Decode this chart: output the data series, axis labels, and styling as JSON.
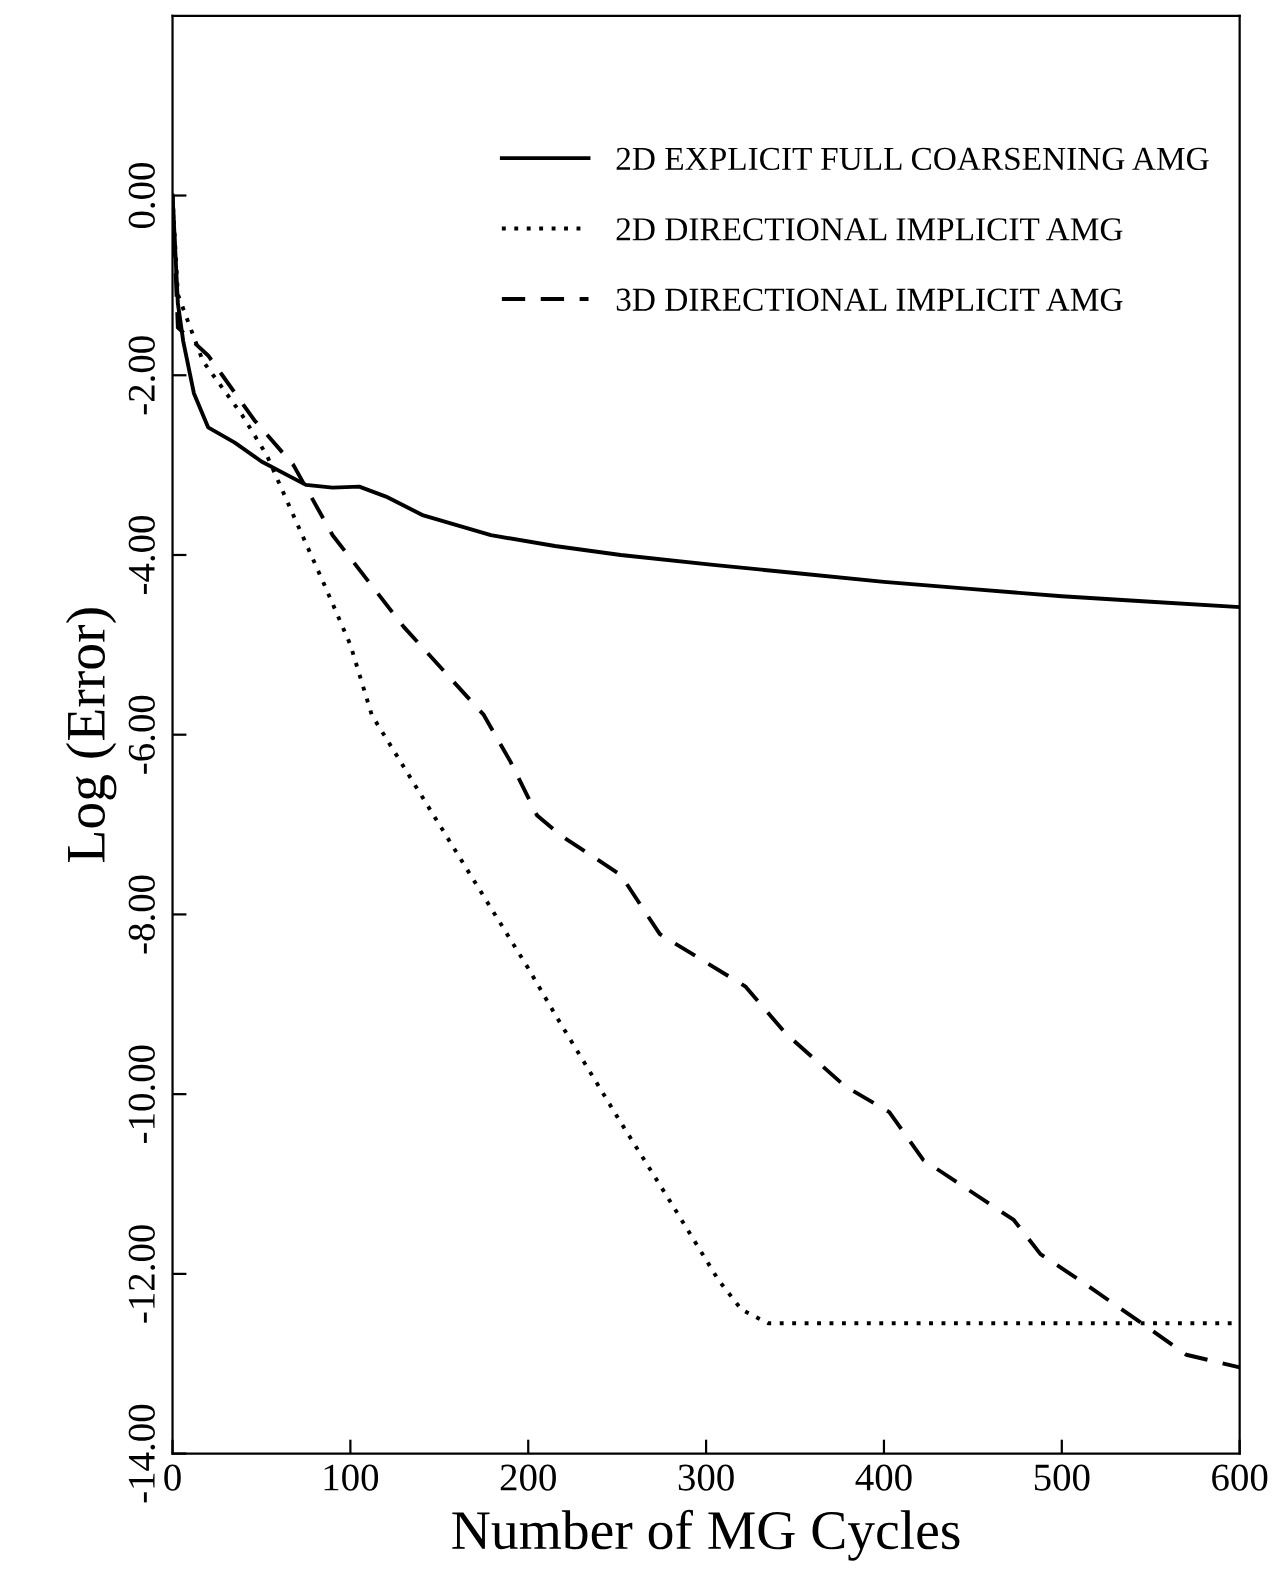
{
  "chart_data": {
    "type": "line",
    "xlabel": "Number of MG Cycles",
    "ylabel": "Log (Error)",
    "xlim": [
      0,
      600
    ],
    "ylim": [
      -14,
      2
    ],
    "xticks": [
      0,
      100,
      200,
      300,
      400,
      500,
      600
    ],
    "yticks": [
      {
        "value": 0,
        "label": "0.00"
      },
      {
        "value": -2,
        "label": "-2.00"
      },
      {
        "value": -4,
        "label": "-4.00"
      },
      {
        "value": -6,
        "label": "-6.00"
      },
      {
        "value": -8,
        "label": "-8.00"
      },
      {
        "value": -10,
        "label": "-10.00"
      },
      {
        "value": -12,
        "label": "-12.00"
      },
      {
        "value": -14,
        "label": "-14.00"
      }
    ],
    "grid": false,
    "legend": "top right",
    "marker": "none",
    "series": [
      {
        "name": "2D EXPLICIT FULL COARSENING AMG",
        "color": "#000000",
        "line_style": "solid",
        "x": [
          0,
          3,
          6,
          12,
          20,
          35,
          50,
          75,
          90,
          105,
          120,
          141,
          179,
          215,
          252,
          304,
          350,
          400,
          450,
          500,
          550,
          600
        ],
        "values": [
          0,
          -1.2,
          -1.62,
          -2.2,
          -2.58,
          -2.75,
          -2.96,
          -3.22,
          -3.25,
          -3.24,
          -3.35,
          -3.56,
          -3.78,
          -3.9,
          -4.0,
          -4.11,
          -4.2,
          -4.3,
          -4.38,
          -4.46,
          -4.52,
          -4.58
        ]
      },
      {
        "name": "2D DIRECTIONAL IMPLICIT AMG",
        "color": "#000000",
        "line_style": "dotted",
        "x": [
          0,
          3,
          17,
          39,
          53,
          68,
          86,
          100,
          112,
          150,
          200,
          215,
          250,
          280,
          307,
          320,
          335,
          400,
          500,
          600
        ],
        "values": [
          0,
          -1.1,
          -1.84,
          -2.44,
          -2.89,
          -3.56,
          -4.36,
          -5.0,
          -5.78,
          -7.0,
          -8.6,
          -9.11,
          -10.25,
          -11.2,
          -12.07,
          -12.4,
          -12.55,
          -12.55,
          -12.55,
          -12.55
        ]
      },
      {
        "name": "3D DIRECTIONAL IMPLICIT AMG",
        "color": "#000000",
        "line_style": "dashed",
        "x": [
          0,
          3,
          20,
          28,
          46,
          68,
          90,
          130,
          175,
          190,
          205,
          219,
          252,
          274,
          322,
          345,
          378,
          403,
          422,
          473,
          488,
          510,
          545,
          570,
          600
        ],
        "values": [
          0,
          -1.47,
          -1.78,
          -2.0,
          -2.5,
          -3.0,
          -3.78,
          -4.8,
          -5.78,
          -6.3,
          -6.9,
          -7.13,
          -7.56,
          -8.22,
          -8.8,
          -9.33,
          -9.91,
          -10.2,
          -10.73,
          -11.4,
          -11.78,
          -12.07,
          -12.55,
          -12.9,
          -13.04
        ]
      }
    ]
  }
}
